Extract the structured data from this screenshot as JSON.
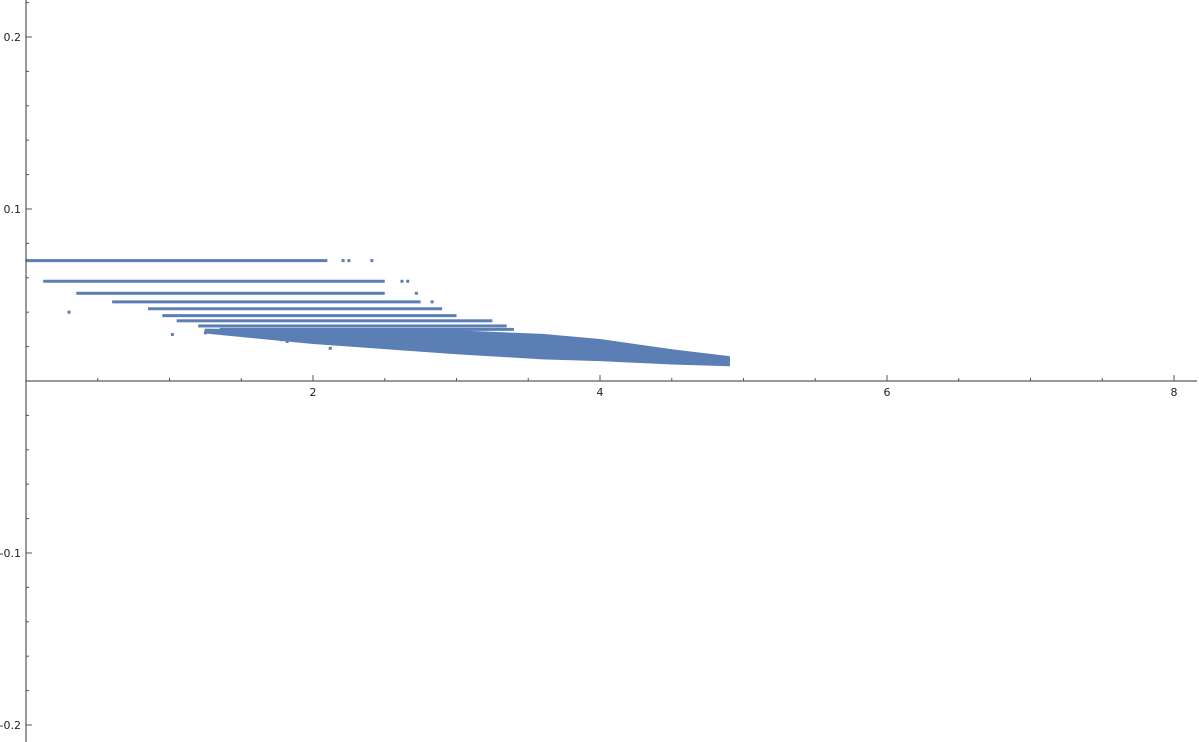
{
  "chart_data": {
    "type": "scatter",
    "title": "",
    "xlabel": "",
    "ylabel": "",
    "xlim": [
      0,
      8.2
    ],
    "ylim": [
      -0.2,
      0.22
    ],
    "grid": false,
    "legend": "none",
    "x_ticks": [
      {
        "value": 2,
        "label": "2"
      },
      {
        "value": 4,
        "label": "4"
      },
      {
        "value": 6,
        "label": "6"
      },
      {
        "value": 8,
        "label": "8"
      }
    ],
    "y_ticks": [
      {
        "value": 0.2,
        "label": "0.2"
      },
      {
        "value": 0.1,
        "label": "0.1"
      },
      {
        "value": -0.1,
        "label": "-0.1"
      },
      {
        "value": -0.2,
        "label": "-0.2"
      }
    ],
    "series": [
      {
        "color": "#5b7fb5",
        "description_of_shape": "dense points along horizontal bands and a tapering cloud",
        "bands": [
          {
            "y": 0.07,
            "x_start": 0.0,
            "x_end": 2.1
          },
          {
            "y": 0.058,
            "x_start": 0.12,
            "x_end": 2.5
          },
          {
            "y": 0.051,
            "x_start": 0.35,
            "x_end": 2.5
          },
          {
            "y": 0.046,
            "x_start": 0.6,
            "x_end": 2.75
          },
          {
            "y": 0.042,
            "x_start": 0.85,
            "x_end": 2.9
          },
          {
            "y": 0.038,
            "x_start": 0.95,
            "x_end": 3.0
          },
          {
            "y": 0.035,
            "x_start": 1.05,
            "x_end": 3.25
          },
          {
            "y": 0.032,
            "x_start": 1.2,
            "x_end": 3.35
          },
          {
            "y": 0.03,
            "x_start": 1.35,
            "x_end": 3.4
          }
        ],
        "cloud_upper": [
          [
            1.25,
            0.03
          ],
          [
            2.0,
            0.029
          ],
          [
            3.0,
            0.029
          ],
          [
            3.6,
            0.027
          ],
          [
            4.0,
            0.024
          ],
          [
            4.5,
            0.018
          ],
          [
            4.9,
            0.014
          ]
        ],
        "cloud_lower": [
          [
            1.25,
            0.028
          ],
          [
            2.0,
            0.022
          ],
          [
            3.0,
            0.016
          ],
          [
            3.6,
            0.013
          ],
          [
            4.0,
            0.012
          ],
          [
            4.5,
            0.01
          ],
          [
            4.9,
            0.009
          ]
        ],
        "isolated_points": [
          [
            2.21,
            0.07
          ],
          [
            2.25,
            0.07
          ],
          [
            2.41,
            0.07
          ],
          [
            2.62,
            0.058
          ],
          [
            2.66,
            0.058
          ],
          [
            2.72,
            0.051
          ],
          [
            2.83,
            0.046
          ],
          [
            0.3,
            0.04
          ],
          [
            1.02,
            0.027
          ],
          [
            1.25,
            0.028
          ],
          [
            1.78,
            0.024
          ],
          [
            1.82,
            0.023
          ],
          [
            2.12,
            0.019
          ]
        ]
      }
    ]
  }
}
